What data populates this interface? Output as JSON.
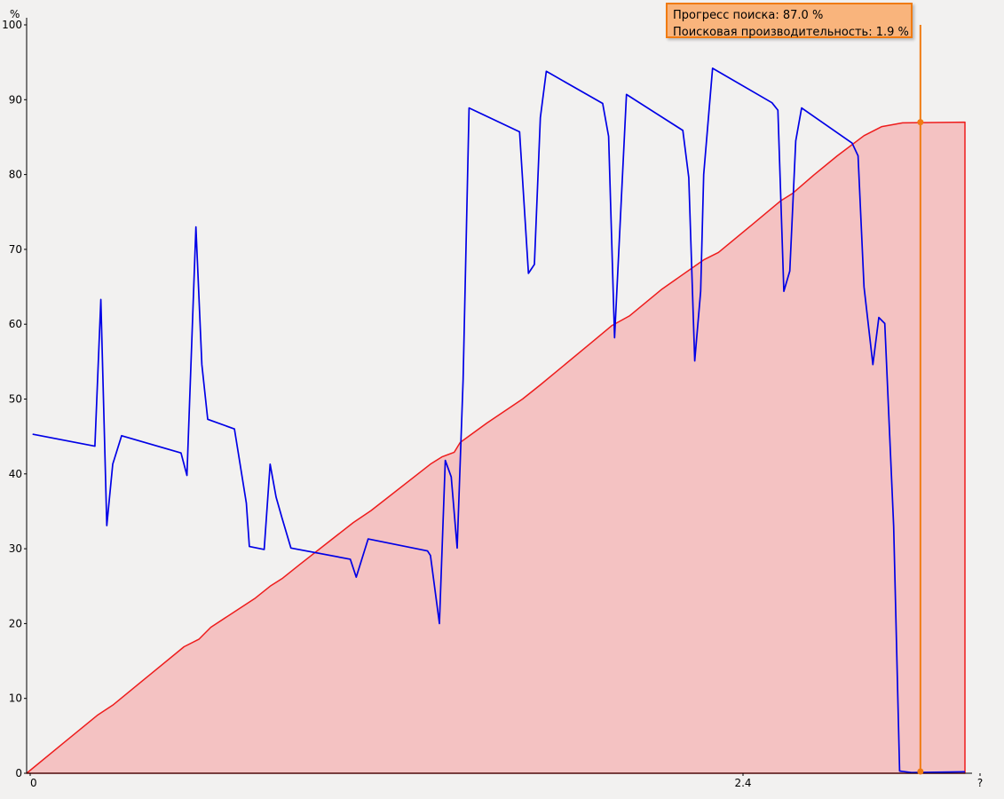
{
  "chart_data": {
    "type": "area",
    "title": "",
    "ylabel": "%",
    "xlabel": "",
    "ylim": [
      0,
      100
    ],
    "y_ticks": [
      0,
      10,
      20,
      30,
      40,
      50,
      60,
      70,
      80,
      90,
      100
    ],
    "x_tick_labels": [
      "0",
      "2.4",
      "?"
    ],
    "grid": false,
    "series": [
      {
        "name": "Прогресс поиска",
        "kind": "area",
        "color": "#ee1c1c",
        "fill": "#f4c2c2",
        "points": [
          [
            0,
            0
          ],
          [
            0.12,
            3.9
          ],
          [
            0.24,
            7.8
          ],
          [
            0.29,
            9.1
          ],
          [
            0.41,
            13.0
          ],
          [
            0.53,
            16.9
          ],
          [
            0.58,
            17.9
          ],
          [
            0.62,
            19.5
          ],
          [
            0.72,
            22.1
          ],
          [
            0.77,
            23.4
          ],
          [
            0.82,
            25.0
          ],
          [
            0.86,
            26.0
          ],
          [
            0.92,
            27.9
          ],
          [
            1.1,
            33.5
          ],
          [
            1.16,
            35.1
          ],
          [
            1.36,
            41.3
          ],
          [
            1.4,
            42.3
          ],
          [
            1.44,
            42.9
          ],
          [
            1.46,
            44.2
          ],
          [
            1.55,
            46.8
          ],
          [
            1.67,
            50.0
          ],
          [
            1.73,
            51.9
          ],
          [
            1.91,
            57.8
          ],
          [
            1.97,
            59.8
          ],
          [
            2.03,
            61.1
          ],
          [
            2.14,
            64.7
          ],
          [
            2.28,
            68.6
          ],
          [
            2.33,
            69.6
          ],
          [
            2.44,
            73.2
          ],
          [
            2.54,
            76.5
          ],
          [
            2.58,
            77.5
          ],
          [
            2.65,
            79.9
          ],
          [
            2.73,
            82.5
          ],
          [
            2.82,
            85.2
          ],
          [
            2.88,
            86.4
          ],
          [
            2.95,
            86.9
          ],
          [
            3.16,
            87.0
          ]
        ]
      },
      {
        "name": "Поисковая производительность",
        "kind": "line",
        "color": "#0000e6",
        "points": [
          [
            0.02,
            45.3
          ],
          [
            0.23,
            43.7
          ],
          [
            0.25,
            63.3
          ],
          [
            0.27,
            33.1
          ],
          [
            0.29,
            41.3
          ],
          [
            0.32,
            45.1
          ],
          [
            0.52,
            42.8
          ],
          [
            0.54,
            39.8
          ],
          [
            0.57,
            73.0
          ],
          [
            0.59,
            54.6
          ],
          [
            0.61,
            47.3
          ],
          [
            0.7,
            46.0
          ],
          [
            0.74,
            36.1
          ],
          [
            0.75,
            30.3
          ],
          [
            0.8,
            29.9
          ],
          [
            0.82,
            41.3
          ],
          [
            0.84,
            36.9
          ],
          [
            0.86,
            34.1
          ],
          [
            0.89,
            30.1
          ],
          [
            1.09,
            28.6
          ],
          [
            1.11,
            26.2
          ],
          [
            1.15,
            31.3
          ],
          [
            1.35,
            29.7
          ],
          [
            1.36,
            29.1
          ],
          [
            1.39,
            20.0
          ],
          [
            1.41,
            41.8
          ],
          [
            1.43,
            39.6
          ],
          [
            1.45,
            30.1
          ],
          [
            1.47,
            52.6
          ],
          [
            1.49,
            88.9
          ],
          [
            1.66,
            85.7
          ],
          [
            1.69,
            66.8
          ],
          [
            1.71,
            68.0
          ],
          [
            1.73,
            87.6
          ],
          [
            1.75,
            93.8
          ],
          [
            1.94,
            89.5
          ],
          [
            1.96,
            85.1
          ],
          [
            1.98,
            58.2
          ],
          [
            2.02,
            90.7
          ],
          [
            2.21,
            85.9
          ],
          [
            2.23,
            79.6
          ],
          [
            2.25,
            55.1
          ],
          [
            2.27,
            64.4
          ],
          [
            2.28,
            80.0
          ],
          [
            2.31,
            94.2
          ],
          [
            2.51,
            89.6
          ],
          [
            2.53,
            88.6
          ],
          [
            2.55,
            64.4
          ],
          [
            2.57,
            67.1
          ],
          [
            2.59,
            84.5
          ],
          [
            2.61,
            88.9
          ],
          [
            2.78,
            84.2
          ],
          [
            2.8,
            82.5
          ],
          [
            2.82,
            65.0
          ],
          [
            2.85,
            54.6
          ],
          [
            2.87,
            60.9
          ],
          [
            2.89,
            60.1
          ],
          [
            2.92,
            33.0
          ],
          [
            2.94,
            0.3
          ],
          [
            2.98,
            0.1
          ],
          [
            3.16,
            0.2
          ]
        ]
      }
    ],
    "cursor": {
      "x": 3.01,
      "progress": 87.0,
      "performance": 1.9
    }
  },
  "tooltip": {
    "line1": "Прогресс поиска: 87.0 %",
    "line2": "Поисковая производительность: 1.9 %"
  },
  "colors": {
    "background": "#f2f1f0",
    "cursor": "#f07b12"
  }
}
